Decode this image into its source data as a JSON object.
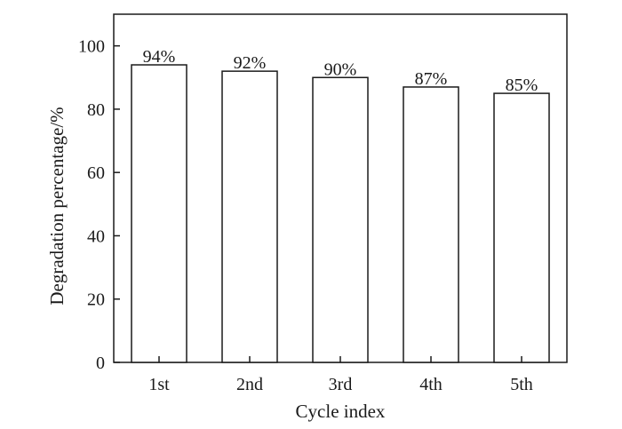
{
  "chart_data": {
    "type": "bar",
    "categories": [
      "1st",
      "2nd",
      "3rd",
      "4th",
      "5th"
    ],
    "values": [
      94,
      92,
      90,
      87,
      85
    ],
    "data_labels": [
      "94%",
      "92%",
      "90%",
      "87%",
      "85%"
    ],
    "xlabel": "Cycle index",
    "ylabel": "Degradation percentage/%",
    "ylim": [
      0,
      110
    ],
    "yticks": [
      0,
      20,
      40,
      60,
      80,
      100
    ],
    "grid": false,
    "legend": "none",
    "colors": {
      "bar_fill": "#ffffff",
      "bar_stroke": "#1a1a1a",
      "axis": "#1a1a1a"
    }
  }
}
